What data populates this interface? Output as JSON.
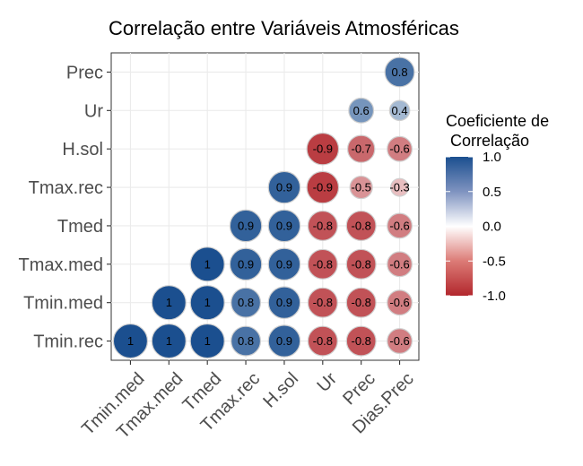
{
  "chart_data": {
    "type": "heatmap",
    "title": "Correlação entre Variáveis Atmosféricas",
    "x_categories": [
      "Tmin.med",
      "Tmax.med",
      "Tmed",
      "Tmax.rec",
      "H.sol",
      "Ur",
      "Prec",
      "Dias.Prec"
    ],
    "y_categories": [
      "Tmin.rec",
      "Tmin.med",
      "Tmax.med",
      "Tmed",
      "Tmax.rec",
      "H.sol",
      "Ur",
      "Prec"
    ],
    "cells": [
      {
        "x": "Tmin.med",
        "y": "Tmin.rec",
        "value": 1,
        "label": "1"
      },
      {
        "x": "Tmax.med",
        "y": "Tmin.rec",
        "value": 1,
        "label": "1"
      },
      {
        "x": "Tmed",
        "y": "Tmin.rec",
        "value": 1,
        "label": "1"
      },
      {
        "x": "Tmax.rec",
        "y": "Tmin.rec",
        "value": 0.8,
        "label": "0.8"
      },
      {
        "x": "H.sol",
        "y": "Tmin.rec",
        "value": 0.9,
        "label": "0.9"
      },
      {
        "x": "Ur",
        "y": "Tmin.rec",
        "value": -0.8,
        "label": "-0.8"
      },
      {
        "x": "Prec",
        "y": "Tmin.rec",
        "value": -0.8,
        "label": "-0.8"
      },
      {
        "x": "Dias.Prec",
        "y": "Tmin.rec",
        "value": -0.6,
        "label": "-0.6"
      },
      {
        "x": "Tmax.med",
        "y": "Tmin.med",
        "value": 1,
        "label": "1"
      },
      {
        "x": "Tmed",
        "y": "Tmin.med",
        "value": 1,
        "label": "1"
      },
      {
        "x": "Tmax.rec",
        "y": "Tmin.med",
        "value": 0.8,
        "label": "0.8"
      },
      {
        "x": "H.sol",
        "y": "Tmin.med",
        "value": 0.9,
        "label": "0.9"
      },
      {
        "x": "Ur",
        "y": "Tmin.med",
        "value": -0.8,
        "label": "-0.8"
      },
      {
        "x": "Prec",
        "y": "Tmin.med",
        "value": -0.8,
        "label": "-0.8"
      },
      {
        "x": "Dias.Prec",
        "y": "Tmin.med",
        "value": -0.6,
        "label": "-0.6"
      },
      {
        "x": "Tmed",
        "y": "Tmax.med",
        "value": 1,
        "label": "1"
      },
      {
        "x": "Tmax.rec",
        "y": "Tmax.med",
        "value": 0.9,
        "label": "0.9"
      },
      {
        "x": "H.sol",
        "y": "Tmax.med",
        "value": 0.9,
        "label": "0.9"
      },
      {
        "x": "Ur",
        "y": "Tmax.med",
        "value": -0.8,
        "label": "-0.8"
      },
      {
        "x": "Prec",
        "y": "Tmax.med",
        "value": -0.8,
        "label": "-0.8"
      },
      {
        "x": "Dias.Prec",
        "y": "Tmax.med",
        "value": -0.6,
        "label": "-0.6"
      },
      {
        "x": "Tmax.rec",
        "y": "Tmed",
        "value": 0.9,
        "label": "0.9"
      },
      {
        "x": "H.sol",
        "y": "Tmed",
        "value": 0.9,
        "label": "0.9"
      },
      {
        "x": "Ur",
        "y": "Tmed",
        "value": -0.8,
        "label": "-0.8"
      },
      {
        "x": "Prec",
        "y": "Tmed",
        "value": -0.8,
        "label": "-0.8"
      },
      {
        "x": "Dias.Prec",
        "y": "Tmed",
        "value": -0.6,
        "label": "-0.6"
      },
      {
        "x": "H.sol",
        "y": "Tmax.rec",
        "value": 0.9,
        "label": "0.9"
      },
      {
        "x": "Ur",
        "y": "Tmax.rec",
        "value": -0.9,
        "label": "-0.9"
      },
      {
        "x": "Prec",
        "y": "Tmax.rec",
        "value": -0.5,
        "label": "-0.5"
      },
      {
        "x": "Dias.Prec",
        "y": "Tmax.rec",
        "value": -0.3,
        "label": "-0.3"
      },
      {
        "x": "Ur",
        "y": "H.sol",
        "value": -0.9,
        "label": "-0.9"
      },
      {
        "x": "Prec",
        "y": "H.sol",
        "value": -0.7,
        "label": "-0.7"
      },
      {
        "x": "Dias.Prec",
        "y": "H.sol",
        "value": -0.6,
        "label": "-0.6"
      },
      {
        "x": "Prec",
        "y": "Ur",
        "value": 0.6,
        "label": "0.6"
      },
      {
        "x": "Dias.Prec",
        "y": "Ur",
        "value": 0.4,
        "label": "0.4"
      },
      {
        "x": "Dias.Prec",
        "y": "Prec",
        "value": 0.8,
        "label": "0.8"
      }
    ],
    "legend": {
      "title_lines": [
        "Coeficiente de",
        " Correlação"
      ],
      "ticks": [
        1.0,
        0.5,
        0.0,
        -0.5,
        -1.0
      ],
      "tick_labels": [
        "1.0",
        "0.5",
        "0.0",
        "-0.5",
        "-1.0"
      ],
      "range": [
        -1,
        1
      ],
      "colors": {
        "high": "#1b4f8f",
        "mid": "#ffffff",
        "low": "#b2272d"
      },
      "placement": "right"
    },
    "grid": true
  }
}
